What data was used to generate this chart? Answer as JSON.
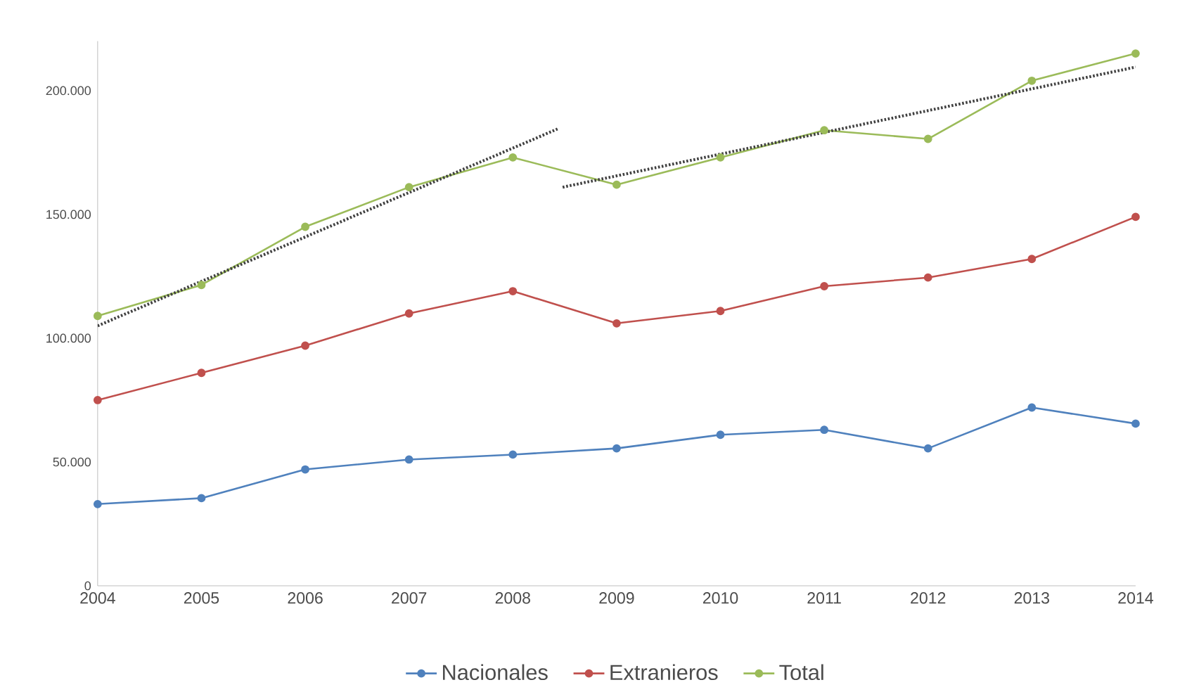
{
  "chart_data": {
    "type": "line",
    "x": [
      2004,
      2005,
      2006,
      2007,
      2008,
      2009,
      2010,
      2011,
      2012,
      2013,
      2014
    ],
    "xlim": [
      2004,
      2014
    ],
    "xticks": [
      2004,
      2005,
      2006,
      2007,
      2008,
      2009,
      2010,
      2011,
      2012,
      2013,
      2014
    ],
    "ylim": [
      0,
      220000
    ],
    "yticks": [
      {
        "value": 0,
        "label": "0"
      },
      {
        "value": 50000,
        "label": "50.000"
      },
      {
        "value": 100000,
        "label": "100.000"
      },
      {
        "value": 150000,
        "label": "150.000"
      },
      {
        "value": 200000,
        "label": "200.000"
      }
    ],
    "series": [
      {
        "name": "Nacionales",
        "color": "#4f81bd",
        "values": [
          33000,
          35400,
          47000,
          51000,
          53000,
          55500,
          61000,
          63000,
          55500,
          72000,
          65500
        ]
      },
      {
        "name": "Extranieros",
        "color": "#c0504d",
        "values": [
          75000,
          86000,
          97000,
          110000,
          119000,
          106000,
          111000,
          121000,
          124500,
          132000,
          149000
        ]
      },
      {
        "name": "Total",
        "color": "#9bbb59",
        "values": [
          109000,
          121500,
          145000,
          161000,
          173000,
          162000,
          173000,
          184000,
          180500,
          204000,
          215000
        ]
      },
      {
        "color": "#404040",
        "x": [
          2004,
          2008.43
        ],
        "values": [
          105000,
          184500
        ],
        "marker": "none",
        "line_style": "dotted"
      },
      {
        "color": "#404040",
        "x": [
          2008.48,
          2014
        ],
        "values": [
          161000,
          209500
        ],
        "marker": "none",
        "line_style": "dotted"
      }
    ],
    "marker": "circle",
    "line_style": "solid",
    "grid": false,
    "legend": "bottom"
  }
}
